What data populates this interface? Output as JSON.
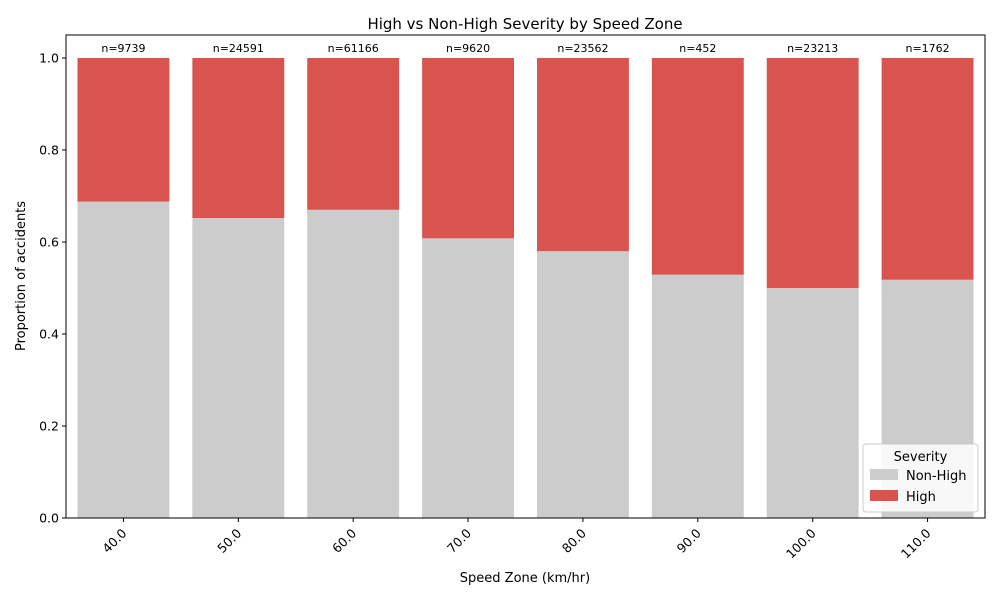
{
  "chart_data": {
    "type": "bar",
    "stacked": true,
    "title": "High vs Non-High Severity by Speed Zone",
    "xlabel": "Speed Zone (km/hr)",
    "ylabel": "Proportion of accidents",
    "categories": [
      "40.0",
      "50.0",
      "60.0",
      "70.0",
      "80.0",
      "90.0",
      "100.0",
      "110.0"
    ],
    "counts": [
      "n=9739",
      "n=24591",
      "n=61166",
      "n=9620",
      "n=23562",
      "n=452",
      "n=23213",
      "n=1762"
    ],
    "series": [
      {
        "name": "Non-High",
        "color": "#cccccc",
        "values": [
          0.688,
          0.652,
          0.67,
          0.608,
          0.58,
          0.529,
          0.5,
          0.518
        ]
      },
      {
        "name": "High",
        "color": "#d9534f",
        "values": [
          0.312,
          0.348,
          0.33,
          0.392,
          0.42,
          0.471,
          0.5,
          0.482
        ]
      }
    ],
    "ylim": [
      0,
      1.05
    ],
    "yticks": [
      "0.0",
      "0.2",
      "0.4",
      "0.6",
      "0.8",
      "1.0"
    ],
    "grid": false,
    "legend": {
      "title": "Severity",
      "placement": "lower-right"
    }
  }
}
